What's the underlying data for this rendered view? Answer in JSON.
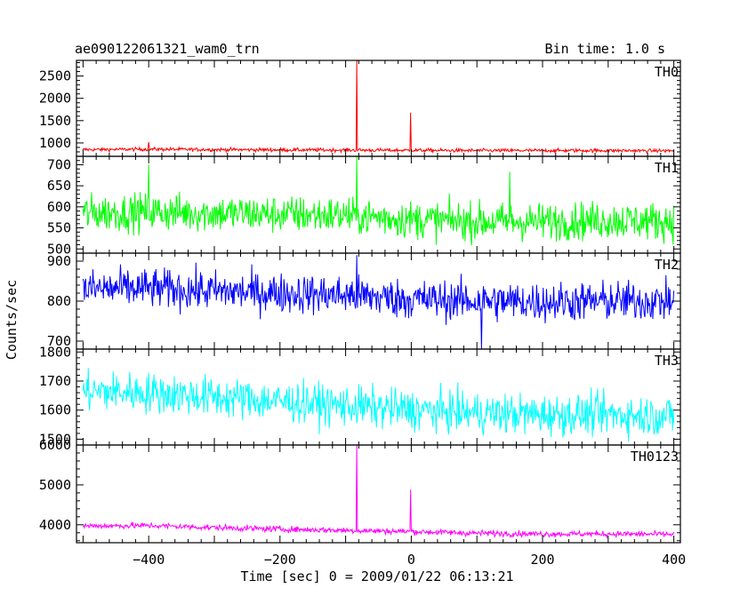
{
  "header": {
    "title": "ae090122061321_wam0_trn",
    "bin_time": "Bin time: 1.0 s"
  },
  "chart_data": [
    {
      "type": "line",
      "panel": "TH0",
      "name": "TH0",
      "color": "#ff0000",
      "xlim": [
        -510,
        410
      ],
      "ylim": [
        700,
        2850
      ],
      "yticks": [
        1000,
        1500,
        2000,
        2500
      ],
      "baseline": [
        [
          -500,
          850
        ],
        [
          -400,
          860
        ],
        [
          -300,
          850
        ],
        [
          -200,
          845
        ],
        [
          -100,
          840
        ],
        [
          0,
          835
        ],
        [
          100,
          830
        ],
        [
          200,
          830
        ],
        [
          300,
          830
        ],
        [
          400,
          825
        ]
      ],
      "noise": 40,
      "spikes": [
        {
          "x": -83,
          "y": 2850
        },
        {
          "x": -1,
          "y": 1680
        },
        {
          "x": -400,
          "y": 1020
        }
      ]
    },
    {
      "type": "line",
      "panel": "TH1",
      "name": "TH1",
      "color": "#00ff00",
      "xlim": [
        -510,
        410
      ],
      "ylim": [
        490,
        720
      ],
      "yticks": [
        500,
        550,
        600,
        650,
        700
      ],
      "baseline": [
        [
          -500,
          585
        ],
        [
          -400,
          588
        ],
        [
          -300,
          585
        ],
        [
          -200,
          582
        ],
        [
          -100,
          580
        ],
        [
          0,
          570
        ],
        [
          100,
          565
        ],
        [
          200,
          565
        ],
        [
          300,
          568
        ],
        [
          400,
          565
        ]
      ],
      "noise": 45,
      "spikes": [
        {
          "x": -83,
          "y": 720
        },
        {
          "x": 150,
          "y": 683
        },
        {
          "x": -400,
          "y": 700
        }
      ]
    },
    {
      "type": "line",
      "panel": "TH2",
      "name": "TH2",
      "color": "#0000ff",
      "xlim": [
        -510,
        410
      ],
      "ylim": [
        680,
        920
      ],
      "yticks": [
        700,
        800,
        900
      ],
      "baseline": [
        [
          -500,
          830
        ],
        [
          -400,
          832
        ],
        [
          -300,
          825
        ],
        [
          -200,
          820
        ],
        [
          -100,
          815
        ],
        [
          0,
          805
        ],
        [
          100,
          800
        ],
        [
          200,
          798
        ],
        [
          300,
          800
        ],
        [
          400,
          800
        ]
      ],
      "noise": 50,
      "spikes": [
        {
          "x": 107,
          "y": 680
        },
        {
          "x": -83,
          "y": 915
        }
      ]
    },
    {
      "type": "line",
      "panel": "TH3",
      "name": "TH3",
      "color": "#00ffff",
      "xlim": [
        -510,
        410
      ],
      "ylim": [
        1480,
        1810
      ],
      "yticks": [
        1500,
        1600,
        1700,
        1800
      ],
      "baseline": [
        [
          -500,
          1665
        ],
        [
          -400,
          1660
        ],
        [
          -300,
          1645
        ],
        [
          -200,
          1630
        ],
        [
          -100,
          1615
        ],
        [
          0,
          1600
        ],
        [
          100,
          1590
        ],
        [
          200,
          1585
        ],
        [
          300,
          1585
        ],
        [
          400,
          1580
        ]
      ],
      "noise": 70,
      "spikes": []
    },
    {
      "type": "line",
      "panel": "TH0123",
      "name": "TH0123",
      "color": "#ff00ff",
      "xlim": [
        -510,
        410
      ],
      "ylim": [
        3550,
        6000
      ],
      "yticks": [
        4000,
        5000,
        6000
      ],
      "baseline": [
        [
          -500,
          3970
        ],
        [
          -400,
          3980
        ],
        [
          -300,
          3930
        ],
        [
          -200,
          3890
        ],
        [
          -100,
          3860
        ],
        [
          0,
          3830
        ],
        [
          100,
          3790
        ],
        [
          200,
          3770
        ],
        [
          300,
          3770
        ],
        [
          400,
          3760
        ]
      ],
      "noise": 75,
      "spikes": [
        {
          "x": -83,
          "y": 6000
        },
        {
          "x": -1,
          "y": 4880
        }
      ]
    }
  ],
  "axes": {
    "ylabel": "Counts/sec",
    "xlabel": "Time [sec] 0 = 2009/01/22 06:13:21",
    "xticks": [
      -400,
      -200,
      0,
      200,
      400
    ],
    "xminor_step": 20
  }
}
